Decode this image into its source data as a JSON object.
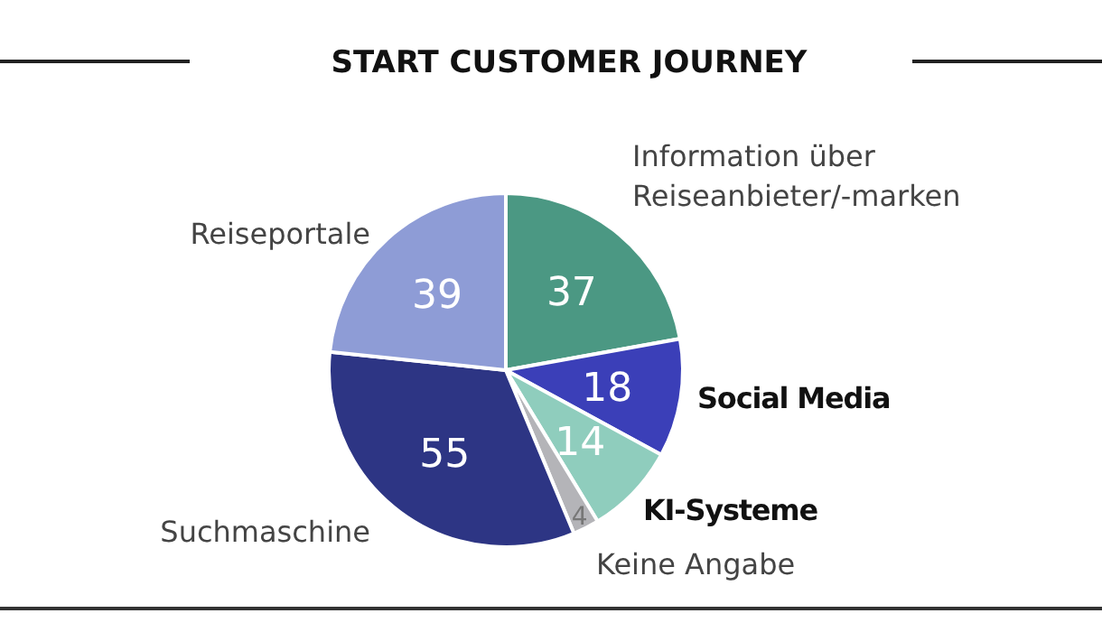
{
  "chart_data": {
    "type": "pie",
    "title": "START CUSTOMER JOURNEY",
    "categories": [
      "Information über Reiseanbieter/-marken",
      "Social Media",
      "KI-Systeme",
      "Keine Angabe",
      "Suchmaschine",
      "Reiseportale"
    ],
    "values": [
      37,
      18,
      14,
      4,
      55,
      39
    ],
    "colors": [
      "#4b9883",
      "#3b3fb8",
      "#8fcdbd",
      "#b4b4b8",
      "#2d3584",
      "#8e9cd6"
    ],
    "data_labels": true
  }
}
